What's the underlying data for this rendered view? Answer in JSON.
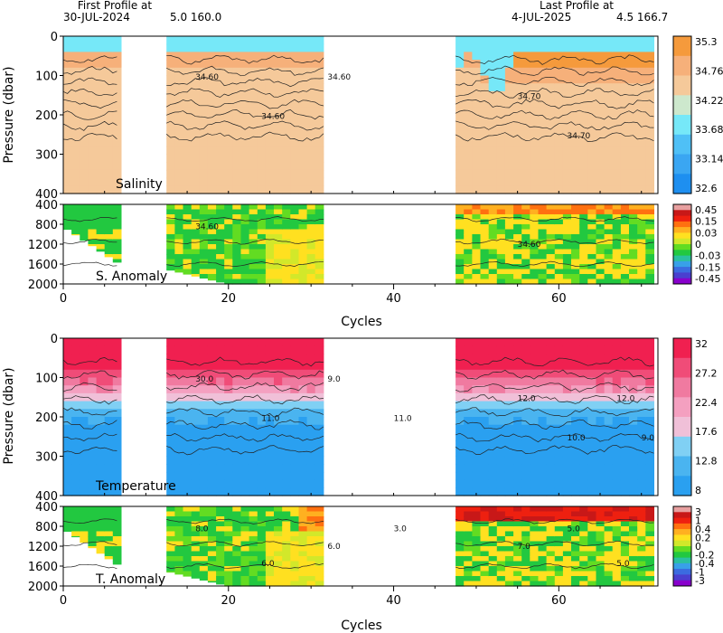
{
  "header": {
    "first_label": "First Profile at",
    "first_date": "30-JUL-2024",
    "first_pos": "5.0 160.0",
    "last_label": "Last Profile at",
    "last_date": "4-JUL-2025",
    "last_pos": "4.5 166.7"
  },
  "colors": {
    "salinity": [
      "#1e8ff0",
      "#3aa6f2",
      "#4fc0f6",
      "#76e8f8",
      "#cde8cd",
      "#f5c99a",
      "#f6b07a",
      "#f59a3c"
    ],
    "anomaly": [
      "#8800cc",
      "#4a3fcf",
      "#3b6be0",
      "#38a0e8",
      "#2ac0a0",
      "#22c840",
      "#62dc22",
      "#d2e82a",
      "#ffe020",
      "#ffb020",
      "#ff7010",
      "#ee2010",
      "#c81818",
      "#e8a0a0"
    ],
    "temperature": [
      "#2aa0f0",
      "#4ab4f0",
      "#80d0f4",
      "#f0c0d8",
      "#f4a0c0",
      "#f07aa0",
      "#f04c78",
      "#f02050"
    ]
  },
  "chart_data": [
    {
      "type": "heatmap",
      "title": "Salinity",
      "ylabel": "Pressure (dbar)",
      "ylim": [
        400,
        0
      ],
      "yticks": [
        "0",
        "100",
        "200",
        "300",
        "400"
      ],
      "xlim": [
        0,
        72
      ],
      "colorbar": {
        "ticks": [
          "35.3",
          "34.76",
          "34.22",
          "33.68",
          "33.14",
          "32.6"
        ]
      },
      "contours": [
        "34.60",
        "34.70",
        "34.60",
        "34.70",
        "34.60"
      ],
      "cycle_ranges": [
        [
          0,
          6.5
        ],
        [
          12.5,
          31.5
        ],
        [
          47.5,
          71.5
        ]
      ]
    },
    {
      "type": "heatmap",
      "title": "S. Anomaly",
      "ylim": [
        2000,
        400
      ],
      "yticks": [
        "400",
        "800",
        "1200",
        "1600",
        "2000"
      ],
      "xlabel": "Cycles",
      "xticks": [
        "0",
        "20",
        "40",
        "60"
      ],
      "colorbar": {
        "ticks": [
          "0.45",
          "0.15",
          "0.03",
          "0",
          "-0.03",
          "-0.15",
          "-0.45"
        ]
      },
      "contours": [
        "34.60",
        "34.60"
      ]
    },
    {
      "type": "heatmap",
      "title": "Temperature",
      "ylabel": "Pressure (dbar)",
      "ylim": [
        400,
        0
      ],
      "yticks": [
        "0",
        "100",
        "200",
        "300",
        "400"
      ],
      "colorbar": {
        "ticks": [
          "32",
          "27.2",
          "22.4",
          "17.6",
          "12.8",
          "8"
        ]
      },
      "contours": [
        "30.0",
        "12.0",
        "11.0",
        "10.0",
        "9.0",
        "12.0",
        "11.0",
        "9.0"
      ]
    },
    {
      "type": "heatmap",
      "title": "T. Anomaly",
      "ylim": [
        2000,
        400
      ],
      "yticks": [
        "400",
        "800",
        "1200",
        "1600",
        "2000"
      ],
      "xlabel": "Cycles",
      "xticks": [
        "0",
        "20",
        "40",
        "60"
      ],
      "colorbar": {
        "ticks": [
          "3",
          "1",
          "0.4",
          "0.2",
          "0",
          "-0.2",
          "-0.4",
          "-1",
          "-3"
        ]
      },
      "contours": [
        "8.0",
        "7.0",
        "6.0",
        "5.0",
        "6.0",
        "5.0",
        "3.0"
      ]
    }
  ]
}
